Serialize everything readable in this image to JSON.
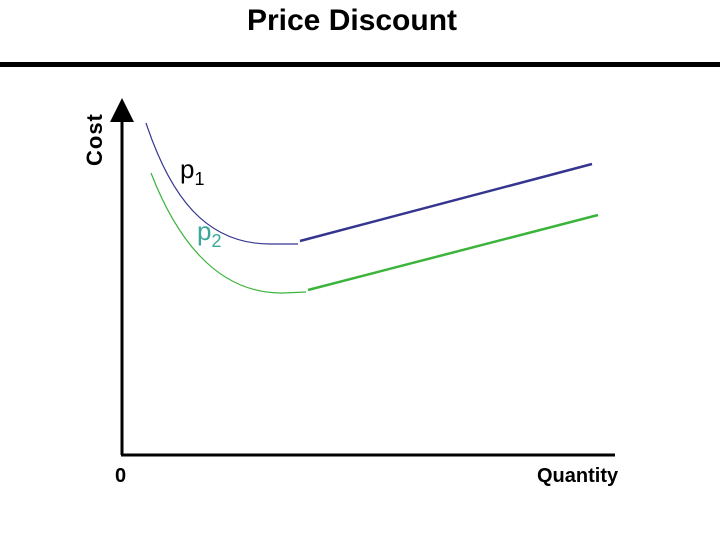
{
  "title": "Price Discount",
  "axes": {
    "ylabel": "Cost",
    "xlabel": "Quantity",
    "origin_label": "0"
  },
  "curves": [
    {
      "id": "p1",
      "label_main": "p",
      "label_sub": "1",
      "color": "#353590",
      "label_color": "#000000"
    },
    {
      "id": "p2",
      "label_main": "p",
      "label_sub": "2",
      "color": "#3cb43c",
      "label_color": "#3aa89a"
    }
  ],
  "colors": {
    "axis": "#000000",
    "rule": "#000000"
  }
}
